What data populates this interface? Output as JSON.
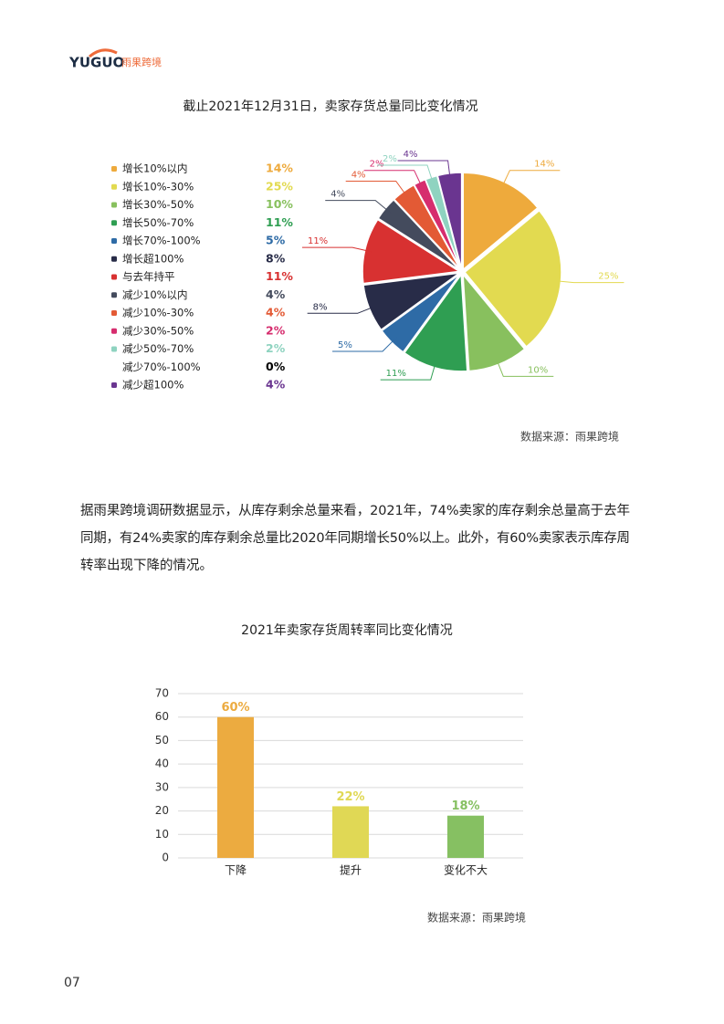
{
  "header": {
    "brand": "YUGUO",
    "brand_cn": "雨果跨境"
  },
  "chart_data": [
    {
      "type": "pie",
      "title": "截止2021年12月31日，卖家存货总量同比变化情况",
      "categories": [
        "增长10%以内",
        "增长10%-30%",
        "增长30%-50%",
        "增长50%-70%",
        "增长70%-100%",
        "增长超100%",
        "与去年持平",
        "减少10%以内",
        "减少10%-30%",
        "减少30%-50%",
        "减少50%-70%",
        "减少70%-100%",
        "减少超100%"
      ],
      "values": [
        14,
        25,
        10,
        11,
        5,
        8,
        11,
        4,
        4,
        2,
        2,
        0,
        4
      ],
      "value_labels": [
        "14%",
        "25%",
        "10%",
        "11%",
        "5%",
        "8%",
        "11%",
        "4%",
        "4%",
        "2%",
        "2%",
        "0%",
        "4%"
      ],
      "colors": [
        "#eeaa3c",
        "#e2da50",
        "#88c05e",
        "#2f9e52",
        "#2e6ba6",
        "#282c48",
        "#d83131",
        "#444b5d",
        "#e35a35",
        "#d62d6e",
        "#8fd3c0",
        "#000000",
        "#6a3590"
      ],
      "source": "数据来源：雨果跨境"
    },
    {
      "type": "bar",
      "title": "2021年卖家存货周转率同比变化情况",
      "categories": [
        "下降",
        "提升",
        "变化不大"
      ],
      "values": [
        60,
        22,
        18
      ],
      "value_labels": [
        "60%",
        "22%",
        "18%"
      ],
      "colors": [
        "#ecab40",
        "#e0d855",
        "#86c062"
      ],
      "ylim": [
        0,
        70
      ],
      "yticks": [
        0,
        10,
        20,
        30,
        40,
        50,
        60,
        70
      ],
      "grid": true,
      "source": "数据来源：雨果跨境"
    }
  ],
  "paragraph": [
    "据雨果跨境调研数据显示，从库存剩余总量来看，2021年，74%卖家的库存剩余总量高于去年",
    "同期，有24%卖家的库存剩余总量比2020年同期增长50%以上。此外，有60%卖家表示库存周",
    "转率出现下降的情况。"
  ],
  "page_number": "07"
}
